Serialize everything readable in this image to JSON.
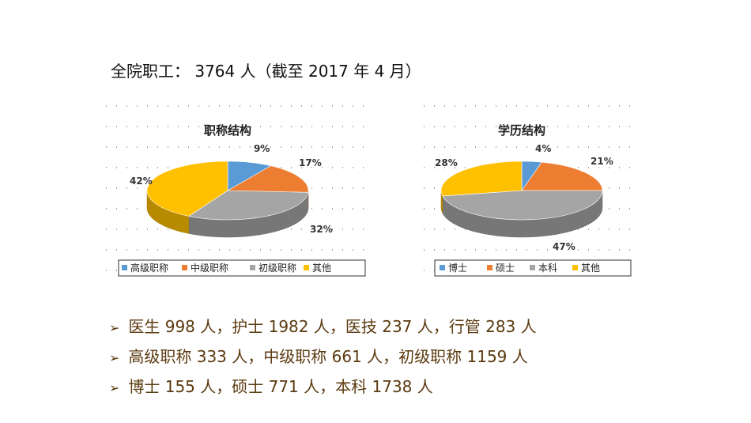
{
  "headline": "全院职工： 3764 人（截至 2017 年 4 月）",
  "chart_data": [
    {
      "type": "pie",
      "title": "职称结构",
      "categories": [
        "高级职称",
        "中级职称",
        "初级职称",
        "其他"
      ],
      "values": [
        9,
        17,
        32,
        42
      ],
      "value_labels": [
        "9%",
        "17%",
        "32%",
        "42%"
      ],
      "colors": [
        "#5b9bd5",
        "#ed7d31",
        "#a5a5a5",
        "#ffc000"
      ],
      "legend": "bottom"
    },
    {
      "type": "pie",
      "title": "学历结构",
      "categories": [
        "博士",
        "硕士",
        "本科",
        "其他"
      ],
      "values": [
        4,
        21,
        47,
        28
      ],
      "value_labels": [
        "4%",
        "21%",
        "47%",
        "28%"
      ],
      "colors": [
        "#5b9bd5",
        "#ed7d31",
        "#a5a5a5",
        "#ffc000"
      ],
      "legend": "bottom"
    }
  ],
  "bullets": [
    "医生 998 人，护士 1982 人，医技 237 人，行管 283 人",
    "高级职称 333 人，中级职称 661 人，初级职称 1159 人",
    "博士 155 人，硕士 771 人，本科 1738 人"
  ],
  "bullet_icon": "arrow-right-icon"
}
